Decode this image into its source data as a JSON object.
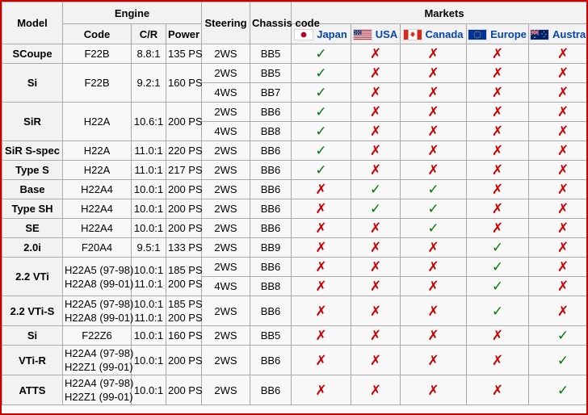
{
  "symbols": {
    "check": "✓",
    "cross": "✗"
  },
  "colors": {
    "check_green": "#007a00",
    "cross_red": "#cc0000",
    "link_blue": "#0645ad",
    "outer_border_red": "#cc0000",
    "table_border_gray": "#aaaaaa",
    "header_bg": "#f2f2f2",
    "cell_bg": "#f9f9f9"
  },
  "table": {
    "headers": {
      "model": "Model",
      "engine": "Engine",
      "engine_sub": {
        "code": "Code",
        "cr": "C/R",
        "power": "Power"
      },
      "steering": "Steering",
      "chassis_code": "Chassis code",
      "markets": "Markets",
      "countries": [
        {
          "label": "Japan",
          "flag": "japan-flag-icon"
        },
        {
          "label": "USA",
          "flag": "usa-flag-icon"
        },
        {
          "label": "Canada",
          "flag": "canada-flag-icon"
        },
        {
          "label": "Europe",
          "flag": "europe-flag-icon"
        },
        {
          "label": "Australia",
          "flag": "australia-flag-icon"
        }
      ]
    },
    "groups": [
      {
        "model": "SCoupe",
        "code": [
          "F22B"
        ],
        "cr": [
          "8.8:1"
        ],
        "power": [
          "135 PS"
        ],
        "variants": [
          {
            "steering": "2WS",
            "chassis": "BB5",
            "markets": [
              true,
              false,
              false,
              false,
              false
            ]
          }
        ]
      },
      {
        "model": "Si",
        "code": [
          "F22B"
        ],
        "cr": [
          "9.2:1"
        ],
        "power": [
          "160 PS"
        ],
        "variants": [
          {
            "steering": "2WS",
            "chassis": "BB5",
            "markets": [
              true,
              false,
              false,
              false,
              false
            ]
          },
          {
            "steering": "4WS",
            "chassis": "BB7",
            "markets": [
              true,
              false,
              false,
              false,
              false
            ]
          }
        ]
      },
      {
        "model": "SiR",
        "code": [
          "H22A"
        ],
        "cr": [
          "10.6:1"
        ],
        "power": [
          "200 PS"
        ],
        "variants": [
          {
            "steering": "2WS",
            "chassis": "BB6",
            "markets": [
              true,
              false,
              false,
              false,
              false
            ]
          },
          {
            "steering": "4WS",
            "chassis": "BB8",
            "markets": [
              true,
              false,
              false,
              false,
              false
            ]
          }
        ]
      },
      {
        "model": "SiR S-spec",
        "code": [
          "H22A"
        ],
        "cr": [
          "11.0:1"
        ],
        "power": [
          "220 PS"
        ],
        "variants": [
          {
            "steering": "2WS",
            "chassis": "BB6",
            "markets": [
              true,
              false,
              false,
              false,
              false
            ]
          }
        ]
      },
      {
        "model": "Type S",
        "code": [
          "H22A"
        ],
        "cr": [
          "11.0:1"
        ],
        "power": [
          "217 PS"
        ],
        "variants": [
          {
            "steering": "2WS",
            "chassis": "BB6",
            "markets": [
              true,
              false,
              false,
              false,
              false
            ]
          }
        ]
      },
      {
        "model": "Base",
        "code": [
          "H22A4"
        ],
        "cr": [
          "10.0:1"
        ],
        "power": [
          "200 PS"
        ],
        "variants": [
          {
            "steering": "2WS",
            "chassis": "BB6",
            "markets": [
              false,
              true,
              true,
              false,
              false
            ]
          }
        ]
      },
      {
        "model": "Type SH",
        "code": [
          "H22A4"
        ],
        "cr": [
          "10.0:1"
        ],
        "power": [
          "200 PS"
        ],
        "variants": [
          {
            "steering": "2WS",
            "chassis": "BB6",
            "markets": [
              false,
              true,
              true,
              false,
              false
            ]
          }
        ]
      },
      {
        "model": "SE",
        "code": [
          "H22A4"
        ],
        "cr": [
          "10.0:1"
        ],
        "power": [
          "200 PS"
        ],
        "variants": [
          {
            "steering": "2WS",
            "chassis": "BB6",
            "markets": [
              false,
              false,
              true,
              false,
              false
            ]
          }
        ]
      },
      {
        "model": "2.0i",
        "code": [
          "F20A4"
        ],
        "cr": [
          "9.5:1"
        ],
        "power": [
          "133 PS"
        ],
        "variants": [
          {
            "steering": "2WS",
            "chassis": "BB9",
            "markets": [
              false,
              false,
              false,
              true,
              false
            ]
          }
        ]
      },
      {
        "model": "2.2 VTi",
        "code": [
          "H22A5 (97-98)",
          "H22A8 (99-01)"
        ],
        "cr": [
          "10.0:1",
          "11.0:1"
        ],
        "power": [
          "185 PS",
          "200 PS"
        ],
        "variants": [
          {
            "steering": "2WS",
            "chassis": "BB6",
            "markets": [
              false,
              false,
              false,
              true,
              false
            ]
          },
          {
            "steering": "4WS",
            "chassis": "BB8",
            "markets": [
              false,
              false,
              false,
              true,
              false
            ]
          }
        ]
      },
      {
        "model": "2.2 VTi-S",
        "code": [
          "H22A5 (97-98)",
          "H22A8 (99-01)"
        ],
        "cr": [
          "10.0:1",
          "11.0:1"
        ],
        "power": [
          "185 PS",
          "200 PS"
        ],
        "variants": [
          {
            "steering": "2WS",
            "chassis": "BB6",
            "markets": [
              false,
              false,
              false,
              true,
              false
            ]
          }
        ]
      },
      {
        "model": "Si",
        "code": [
          "F22Z6"
        ],
        "cr": [
          "10.0:1"
        ],
        "power": [
          "160 PS"
        ],
        "variants": [
          {
            "steering": "2WS",
            "chassis": "BB5",
            "markets": [
              false,
              false,
              false,
              false,
              true
            ]
          }
        ]
      },
      {
        "model": "VTi-R",
        "code": [
          "H22A4 (97-98)",
          "H22Z1 (99-01)"
        ],
        "cr": [
          "10.0:1"
        ],
        "power": [
          "200 PS"
        ],
        "variants": [
          {
            "steering": "2WS",
            "chassis": "BB6",
            "markets": [
              false,
              false,
              false,
              false,
              true
            ]
          }
        ]
      },
      {
        "model": "ATTS",
        "code": [
          "H22A4 (97-98)",
          "H22Z1 (99-01)"
        ],
        "cr": [
          "10.0:1"
        ],
        "power": [
          "200 PS"
        ],
        "variants": [
          {
            "steering": "2WS",
            "chassis": "BB6",
            "markets": [
              false,
              false,
              false,
              false,
              true
            ]
          }
        ]
      }
    ]
  }
}
